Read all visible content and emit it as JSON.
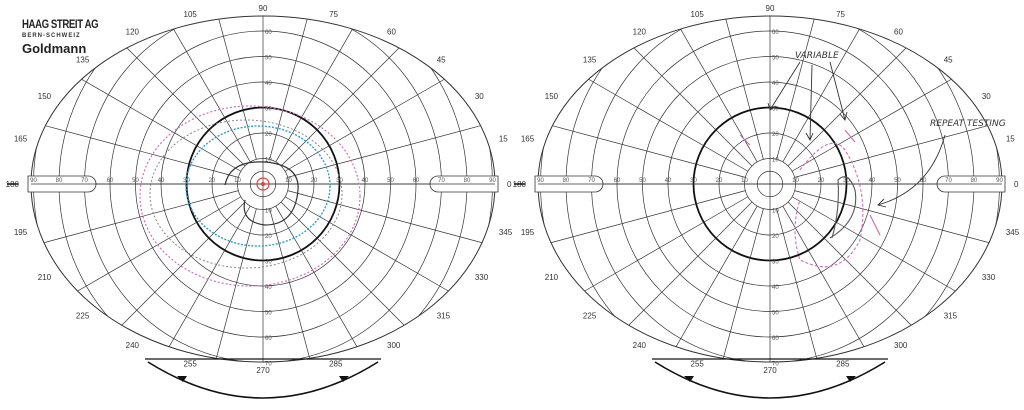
{
  "header": {
    "brand": "HAAG STREIT AG",
    "location": "BERN-SCHWEIZ",
    "model": "Goldmann"
  },
  "meridian_labels": [
    "0",
    "15",
    "30",
    "45",
    "60",
    "75",
    "90",
    "105",
    "120",
    "135",
    "150",
    "165",
    "180",
    "195",
    "210",
    "225",
    "240",
    "255",
    "270",
    "285",
    "300",
    "315",
    "330",
    "345"
  ],
  "ring_labels": [
    "10",
    "20",
    "30",
    "40",
    "50",
    "60",
    "70",
    "80",
    "90"
  ],
  "charts": [
    {
      "id": "left",
      "isopter_colors": [
        "#d070b0",
        "#2aa0c8",
        "#888888",
        "#333333"
      ],
      "fixation_color": "#e04040"
    },
    {
      "id": "right",
      "isopter_colors": [
        "#d070b0",
        "#555555"
      ],
      "annotations": [
        "VARIABLE",
        "REPEAT TESTING"
      ]
    }
  ],
  "colors": {
    "grid": "#333333",
    "bold_ring": "#111111"
  }
}
